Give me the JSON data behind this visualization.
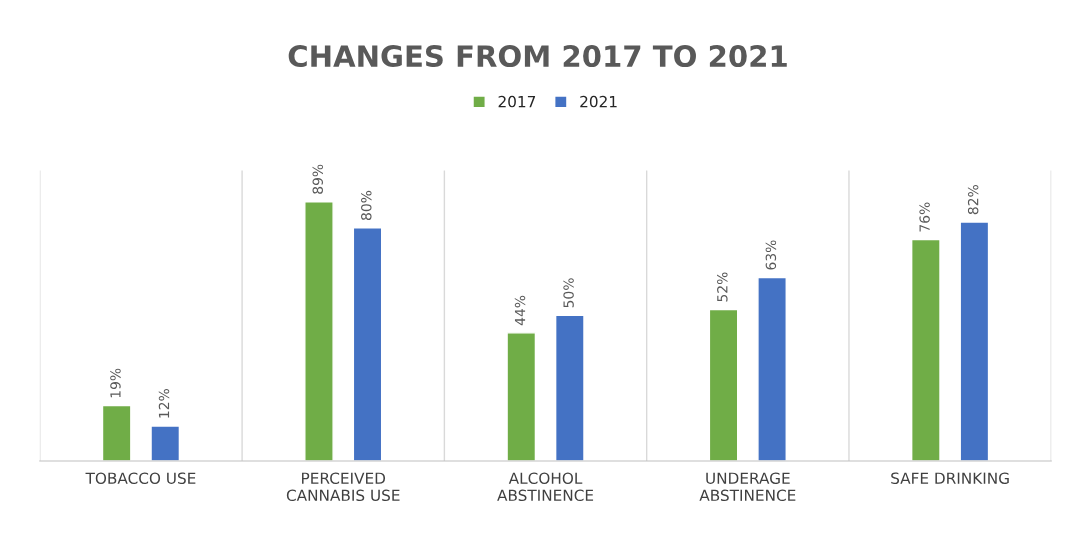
{
  "chart_data": {
    "type": "bar",
    "title": "CHANGES FROM 2017 TO 2021",
    "categories": [
      "TOBACCO USE",
      "PERCEIVED\nCANNABIS USE",
      "ALCOHOL\nABSTINENCE",
      "UNDERAGE\nABSTINENCE",
      "SAFE DRINKING"
    ],
    "series": [
      {
        "name": "2017",
        "color": "#70ad47",
        "values": [
          19,
          89,
          44,
          52,
          76
        ],
        "value_labels": [
          "19%",
          "89%",
          "44%",
          "52%",
          "76%"
        ]
      },
      {
        "name": "2021",
        "color": "#4472c4",
        "values": [
          12,
          80,
          50,
          63,
          82
        ],
        "value_labels": [
          "12%",
          "80%",
          "50%",
          "63%",
          "82%"
        ]
      }
    ],
    "grid": "x",
    "legend": "top"
  }
}
